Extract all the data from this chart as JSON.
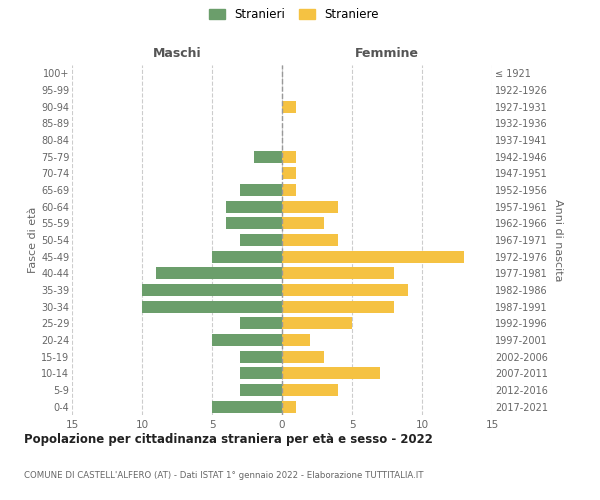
{
  "age_groups": [
    "0-4",
    "5-9",
    "10-14",
    "15-19",
    "20-24",
    "25-29",
    "30-34",
    "35-39",
    "40-44",
    "45-49",
    "50-54",
    "55-59",
    "60-64",
    "65-69",
    "70-74",
    "75-79",
    "80-84",
    "85-89",
    "90-94",
    "95-99",
    "100+"
  ],
  "birth_years": [
    "2017-2021",
    "2012-2016",
    "2007-2011",
    "2002-2006",
    "1997-2001",
    "1992-1996",
    "1987-1991",
    "1982-1986",
    "1977-1981",
    "1972-1976",
    "1967-1971",
    "1962-1966",
    "1957-1961",
    "1952-1956",
    "1947-1951",
    "1942-1946",
    "1937-1941",
    "1932-1936",
    "1927-1931",
    "1922-1926",
    "≤ 1921"
  ],
  "maschi": [
    5,
    3,
    3,
    3,
    5,
    3,
    10,
    10,
    9,
    5,
    3,
    4,
    4,
    3,
    0,
    2,
    0,
    0,
    0,
    0,
    0
  ],
  "femmine": [
    1,
    4,
    7,
    3,
    2,
    5,
    8,
    9,
    8,
    13,
    4,
    3,
    4,
    1,
    1,
    1,
    0,
    0,
    1,
    0,
    0
  ],
  "color_maschi": "#6b9e6b",
  "color_femmine": "#f5c242",
  "title": "Popolazione per cittadinanza straniera per età e sesso - 2022",
  "subtitle": "COMUNE DI CASTELL'ALFERO (AT) - Dati ISTAT 1° gennaio 2022 - Elaborazione TUTTITALIA.IT",
  "label_maschi": "Maschi",
  "label_femmine": "Femmine",
  "ylabel_left": "Fasce di età",
  "ylabel_right": "Anni di nascita",
  "legend_maschi": "Stranieri",
  "legend_femmine": "Straniere",
  "xlim": 15,
  "background_color": "#ffffff",
  "grid_color": "#cccccc"
}
